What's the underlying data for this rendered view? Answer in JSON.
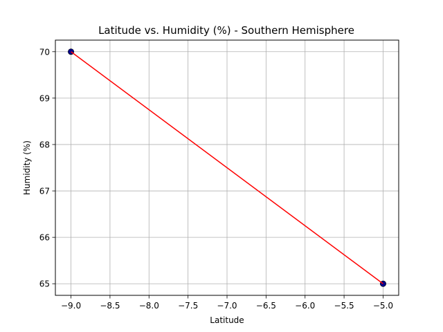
{
  "chart_data": {
    "type": "scatter",
    "title": "Latitude vs. Humidity (%) - Southern Hemisphere",
    "xlabel": "Latitude",
    "ylabel": "Humidity (%)",
    "xlim": [
      -9.2,
      -4.8
    ],
    "ylim": [
      64.75,
      70.25
    ],
    "xticks": [
      -9.0,
      -8.5,
      -8.0,
      -7.5,
      -7.0,
      -6.5,
      -6.0,
      -5.5,
      -5.0
    ],
    "xtick_labels": [
      "−9.0",
      "−8.5",
      "−8.0",
      "−7.5",
      "−7.0",
      "−6.5",
      "−6.0",
      "−5.5",
      "−5.0"
    ],
    "yticks": [
      65,
      66,
      67,
      68,
      69,
      70
    ],
    "ytick_labels": [
      "65",
      "66",
      "67",
      "68",
      "69",
      "70"
    ],
    "grid": true,
    "points": [
      {
        "x": -9.0,
        "y": 70
      },
      {
        "x": -5.0,
        "y": 65
      }
    ],
    "regression_line": {
      "x": [
        -9.0,
        -5.0
      ],
      "y": [
        70,
        65
      ]
    },
    "colors": {
      "points": "#00008b",
      "point_edge": "#000000",
      "regression_line": "#ff0000",
      "grid": "#b0b0b0",
      "axes": "#000000"
    }
  }
}
